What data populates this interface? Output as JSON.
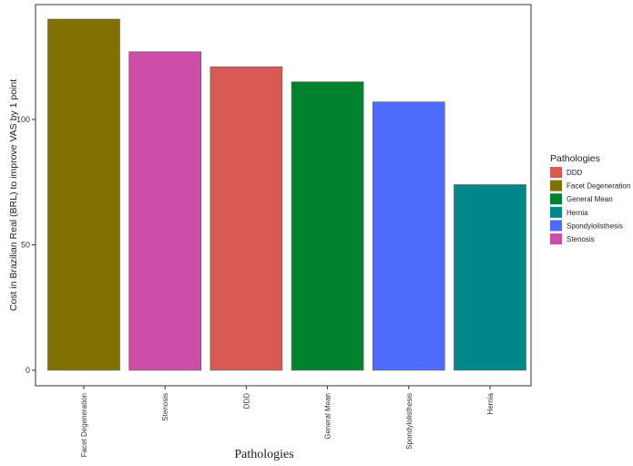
{
  "chart_data": {
    "type": "bar",
    "categories": [
      "Facet Degeneration",
      "Stenosis",
      "DDD",
      "General Mean",
      "Spondylolisthesis",
      "Hernia"
    ],
    "values": [
      140,
      127,
      121,
      115,
      107,
      74
    ],
    "colors": [
      "#7f7000",
      "#cc4ea8",
      "#d95a55",
      "#00822f",
      "#4f6bfb",
      "#00878a"
    ],
    "xlabel": "Pathologies",
    "ylabel": "Cost in Brazilian Real (BRL) to improve VAS by 1 point",
    "ylim": [
      0,
      145
    ],
    "yticks": [
      0,
      50,
      100
    ],
    "grid": false,
    "legend": {
      "title": "Pathologies",
      "position": "right",
      "entries": [
        {
          "label": "DDD",
          "color": "#d95a55"
        },
        {
          "label": "Facet Degeneration",
          "color": "#7f7000"
        },
        {
          "label": "General Mean",
          "color": "#00822f"
        },
        {
          "label": "Hernia",
          "color": "#00878a"
        },
        {
          "label": "Spondylolisthesis",
          "color": "#4f6bfb"
        },
        {
          "label": "Stenosis",
          "color": "#cc4ea8"
        }
      ]
    }
  }
}
